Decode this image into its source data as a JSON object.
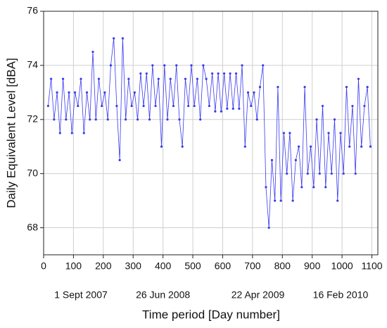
{
  "chart_data": {
    "type": "line",
    "xlabel": "Time period [Day number]",
    "ylabel": "Daily Equivalent Level [dBA]",
    "color": "#3a3af0",
    "grid": true,
    "xlim": [
      0,
      1120
    ],
    "ylim": [
      67,
      76
    ],
    "xticks": [
      0,
      100,
      200,
      300,
      400,
      500,
      600,
      700,
      800,
      900,
      1000,
      1100
    ],
    "yticks": [
      68,
      70,
      72,
      74,
      76
    ],
    "date_labels": [
      {
        "value": 125,
        "label": "1 Sept 2007"
      },
      {
        "value": 400,
        "label": "26 Jun 2008"
      },
      {
        "value": 718,
        "label": "22 Apr 2009"
      },
      {
        "value": 995,
        "label": "16 Feb 2010"
      }
    ],
    "x": [
      15,
      25,
      35,
      45,
      55,
      65,
      75,
      85,
      95,
      105,
      115,
      125,
      135,
      145,
      155,
      165,
      175,
      185,
      195,
      205,
      215,
      225,
      235,
      245,
      255,
      265,
      275,
      285,
      295,
      305,
      315,
      325,
      335,
      345,
      355,
      365,
      375,
      385,
      395,
      405,
      415,
      425,
      435,
      445,
      455,
      465,
      475,
      485,
      495,
      505,
      515,
      525,
      535,
      545,
      555,
      565,
      575,
      585,
      595,
      605,
      615,
      625,
      635,
      645,
      655,
      665,
      675,
      685,
      695,
      705,
      715,
      725,
      735,
      745,
      755,
      765,
      775,
      785,
      795,
      805,
      815,
      825,
      835,
      845,
      855,
      865,
      875,
      885,
      895,
      905,
      915,
      925,
      935,
      945,
      955,
      965,
      975,
      985,
      995,
      1005,
      1015,
      1025,
      1035,
      1045,
      1055,
      1065,
      1075,
      1085,
      1095
    ],
    "values": [
      72.5,
      73.5,
      72,
      73,
      71.5,
      73.5,
      72,
      73,
      71.5,
      73,
      72.5,
      73.5,
      71.5,
      73,
      72,
      74.5,
      72,
      73.5,
      72.5,
      73,
      72,
      74,
      75,
      72.5,
      70.5,
      75,
      72,
      73.5,
      72.5,
      73,
      72,
      73.7,
      72.5,
      73.7,
      72,
      74,
      72.5,
      73.5,
      71,
      74,
      72,
      73.5,
      72.5,
      74,
      72,
      71,
      73.5,
      72.5,
      74,
      72.5,
      73.5,
      72,
      74,
      73.5,
      72.5,
      73.7,
      72.3,
      73.7,
      72.3,
      73.7,
      72.4,
      73.7,
      72.4,
      73.7,
      72.4,
      74,
      71,
      73,
      72.5,
      73,
      72,
      73.2,
      74,
      69.5,
      68,
      70.5,
      69,
      73.2,
      69,
      71.5,
      70,
      71.5,
      69,
      70.5,
      71,
      69.5,
      73.2,
      70,
      71,
      69.5,
      72,
      70,
      72.5,
      69.5,
      71.5,
      70,
      72,
      69,
      71.5,
      70,
      73.2,
      71,
      72.5,
      70,
      73.5,
      71,
      72.5,
      73.2,
      71
    ]
  }
}
